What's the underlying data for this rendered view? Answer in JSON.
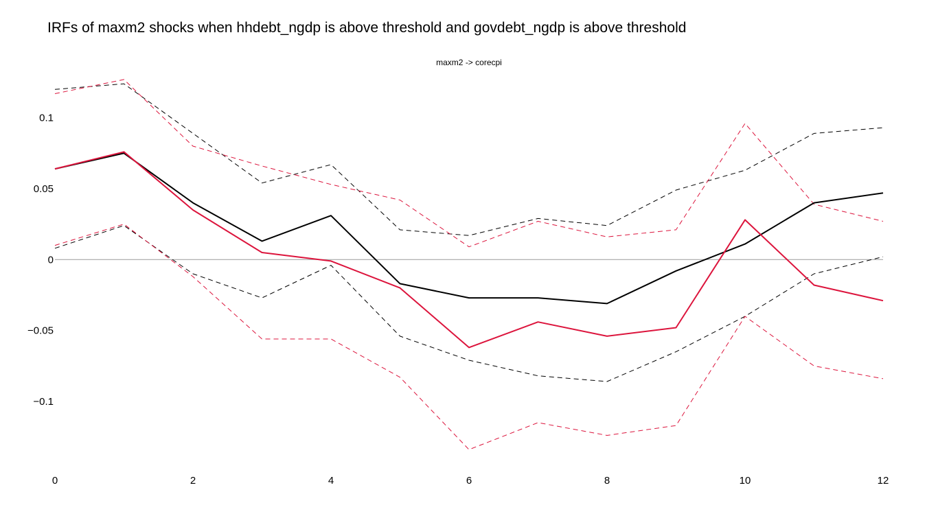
{
  "title": "IRFs of maxm2 shocks when hhdebt_ngdp is above threshold and govdebt_ngdp is above threshold",
  "chart_data": {
    "type": "line",
    "title": "IRFs of maxm2 shocks when hhdebt_ngdp is above threshold and govdebt_ngdp is above threshold",
    "subtitle": "maxm2 -> corecpi",
    "xlabel": "",
    "ylabel": "",
    "x": [
      0,
      1,
      2,
      3,
      4,
      5,
      6,
      7,
      8,
      9,
      10,
      11,
      12
    ],
    "xlim": [
      0,
      12
    ],
    "ylim": [
      -0.146,
      0.125
    ],
    "x_ticks": [
      "0",
      "2",
      "4",
      "6",
      "8",
      "10",
      "12"
    ],
    "y_ticks": [
      "0.1",
      "0.05",
      "0",
      "−0.05",
      "−0.1"
    ],
    "y_tick_values": [
      0.1,
      0.05,
      0,
      -0.05,
      -0.1
    ],
    "grid": false,
    "zero_line": true,
    "series": [
      {
        "color": "#000000",
        "style": "solid",
        "values": [
          0.064,
          0.075,
          0.04,
          0.013,
          0.031,
          -0.017,
          -0.027,
          -0.027,
          -0.031,
          -0.008,
          0.011,
          0.04,
          0.047
        ]
      },
      {
        "color": "#000000",
        "style": "dashed",
        "values": [
          0.12,
          0.124,
          0.089,
          0.054,
          0.067,
          0.021,
          0.017,
          0.029,
          0.024,
          0.049,
          0.063,
          0.089,
          0.093
        ]
      },
      {
        "color": "#000000",
        "style": "dashed",
        "values": [
          0.008,
          0.024,
          -0.01,
          -0.027,
          -0.004,
          -0.054,
          -0.071,
          -0.082,
          -0.086,
          -0.065,
          -0.04,
          -0.01,
          0.002
        ]
      },
      {
        "color": "#dc143c",
        "style": "solid",
        "values": [
          0.064,
          0.076,
          0.035,
          0.005,
          -0.001,
          -0.02,
          -0.062,
          -0.044,
          -0.054,
          -0.048,
          0.028,
          -0.018,
          -0.029
        ]
      },
      {
        "color": "#dc143c",
        "style": "dashed",
        "values": [
          0.117,
          0.127,
          0.08,
          0.066,
          0.053,
          0.042,
          0.009,
          0.027,
          0.016,
          0.021,
          0.096,
          0.039,
          0.027
        ]
      },
      {
        "color": "#dc143c",
        "style": "dashed",
        "values": [
          0.01,
          0.025,
          -0.012,
          -0.056,
          -0.056,
          -0.083,
          -0.134,
          -0.115,
          -0.124,
          -0.117,
          -0.04,
          -0.075,
          -0.084
        ]
      }
    ]
  }
}
